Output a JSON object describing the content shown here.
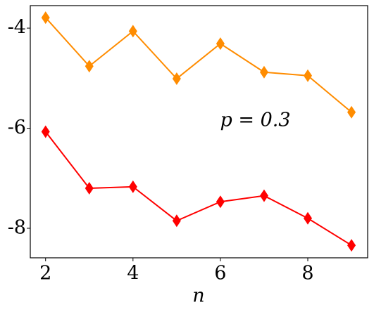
{
  "chart_data": {
    "type": "line",
    "x_label": "n",
    "annotation": {
      "text": "p = 0.3",
      "x": 6.8,
      "y": -5.85
    },
    "x": [
      2,
      3,
      4,
      5,
      6,
      7,
      8,
      9
    ],
    "series": [
      {
        "color": "#ff8c00",
        "values": [
          -3.79,
          -4.76,
          -4.06,
          -5.01,
          -4.31,
          -4.88,
          -4.95,
          -5.68
        ]
      },
      {
        "color": "#ff0000",
        "values": [
          -6.07,
          -7.2,
          -7.17,
          -7.85,
          -7.47,
          -7.35,
          -7.8,
          -8.34
        ]
      }
    ],
    "xlim": [
      1.65,
      9.37
    ],
    "xticks": [
      2,
      4,
      6,
      8
    ],
    "ylim": [
      -8.59,
      -3.55
    ],
    "yticks": [
      -4,
      -6,
      -8
    ],
    "marker": "diamond",
    "grid": false
  }
}
